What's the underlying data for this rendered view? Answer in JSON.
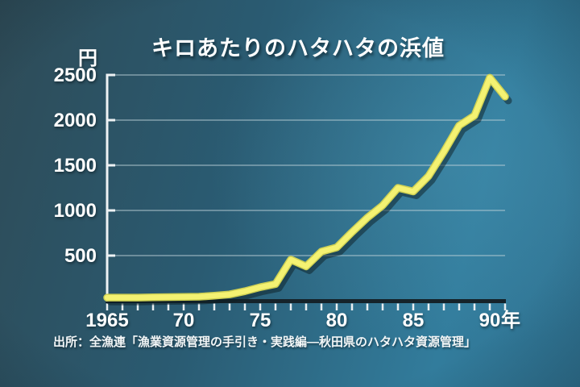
{
  "title": "キロあたりのハタハタの浜値",
  "source": "出所：全漁連「漁業資源管理の手引き・実践編―秋田県のハタハタ資源管理」",
  "y_unit": "円",
  "x_unit": "年",
  "colors": {
    "line_core": "#f4f272",
    "line_edge": "#cfd153",
    "line_shadow": "#0c1d24",
    "grid": "#bdd1d8",
    "axis_y": "#eef2f4",
    "axis_x_dark": "#15232a",
    "tick": "#e9eff1",
    "text": "#ffffff",
    "background_dark": "#2e4b57",
    "background_light": "#327c9c"
  },
  "chart_data": {
    "type": "line",
    "title": "キロあたりのハタハタの浜値",
    "ylabel": "円",
    "xlabel": "年",
    "xlim": [
      1965,
      1991
    ],
    "ylim": [
      0,
      2500
    ],
    "grid": "horizontal-only",
    "legend": "none",
    "x": [
      1965,
      1966,
      1967,
      1968,
      1969,
      1970,
      1971,
      1972,
      1973,
      1974,
      1975,
      1976,
      1977,
      1978,
      1979,
      1980,
      1981,
      1982,
      1983,
      1984,
      1985,
      1986,
      1987,
      1988,
      1989,
      1990,
      1991
    ],
    "values": [
      35,
      35,
      35,
      38,
      40,
      42,
      45,
      55,
      70,
      105,
      150,
      185,
      455,
      380,
      545,
      590,
      760,
      920,
      1055,
      1250,
      1210,
      1380,
      1650,
      1940,
      2050,
      2470,
      2260
    ],
    "y_ticks": [
      500,
      1000,
      1500,
      2000,
      2500
    ],
    "x_tick_labels": [
      {
        "year": 1965,
        "label": "1965"
      },
      {
        "year": 1970,
        "label": "70"
      },
      {
        "year": 1975,
        "label": "75"
      },
      {
        "year": 1980,
        "label": "80"
      },
      {
        "year": 1985,
        "label": "85"
      },
      {
        "year": 1990,
        "label": "90"
      }
    ],
    "x_minor_ticks_every": 1
  }
}
